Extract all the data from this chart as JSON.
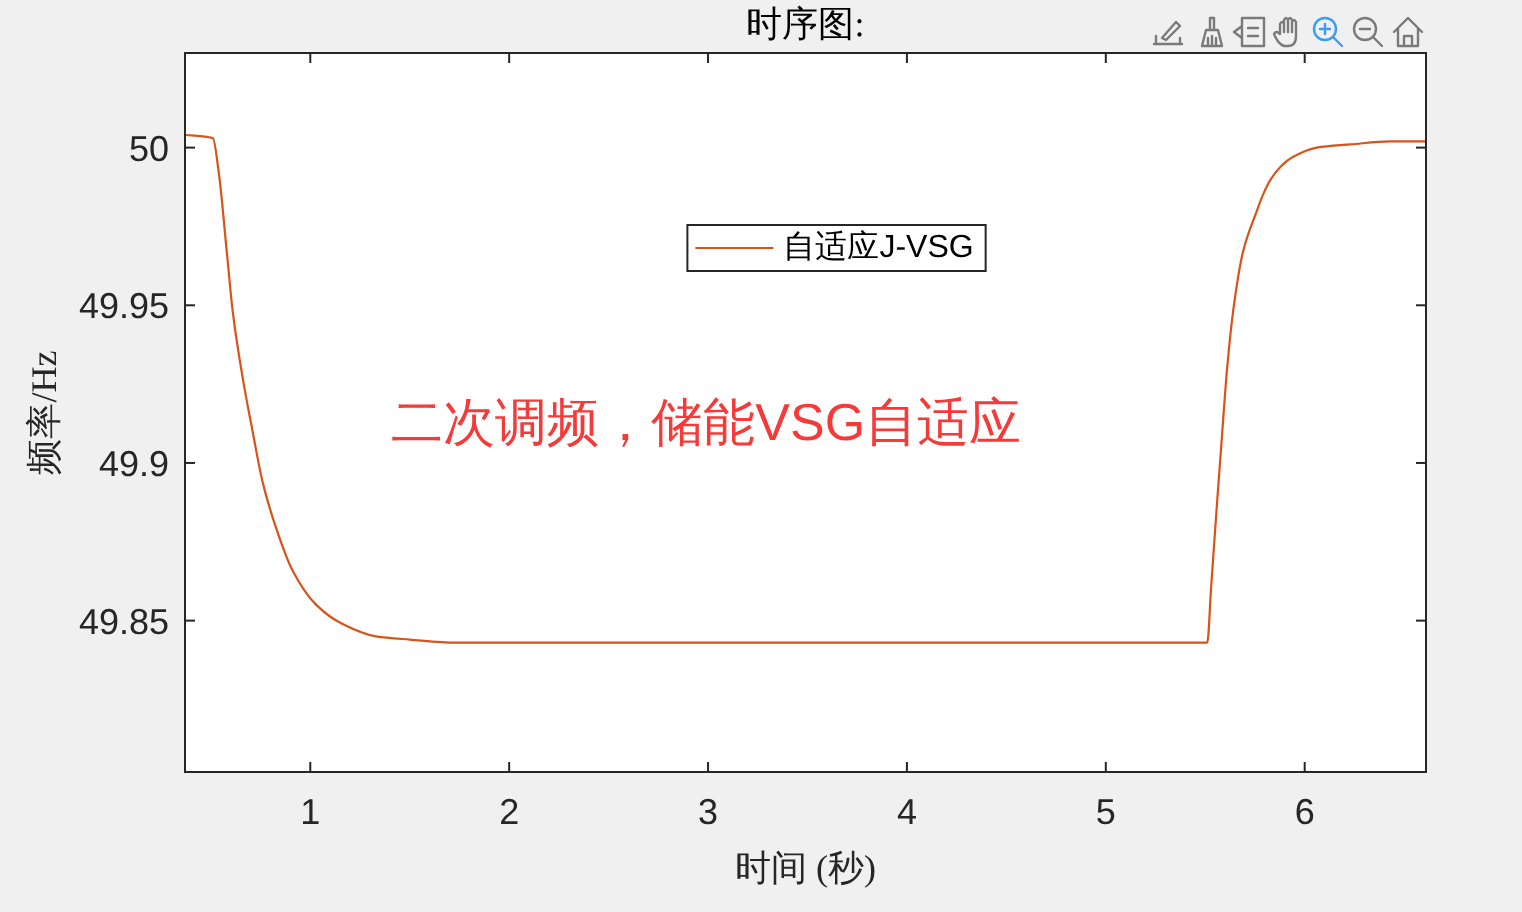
{
  "chart_data": {
    "type": "line",
    "title": "时序图:",
    "xlabel": "时间 (秒)",
    "ylabel": "频率/Hz",
    "xlim": [
      0.37,
      6.61
    ],
    "xticks": [
      1,
      2,
      3,
      4,
      5,
      6
    ],
    "ylim": [
      49.802,
      50.03
    ],
    "yticks": [
      49.85,
      49.9,
      49.95,
      50
    ],
    "series": [
      {
        "name": "自适应J-VSG",
        "color": "#d95319",
        "x": [
          0.37,
          0.51,
          0.54,
          0.58,
          0.61,
          0.66,
          0.71,
          0.76,
          0.83,
          0.91,
          1.03,
          1.16,
          1.33,
          1.5,
          1.73,
          2.0,
          3.0,
          4.0,
          5.0,
          5.51,
          5.53,
          5.56,
          5.58,
          5.61,
          5.64,
          5.69,
          5.76,
          5.79,
          5.83,
          5.88,
          5.94,
          6.06,
          6.23,
          6.43,
          6.61
        ],
        "values": [
          50.004,
          50.003,
          49.992,
          49.967,
          49.948,
          49.927,
          49.91,
          49.894,
          49.879,
          49.866,
          49.855,
          49.849,
          49.845,
          49.844,
          49.843,
          49.843,
          49.843,
          49.843,
          49.843,
          49.843,
          49.861,
          49.888,
          49.905,
          49.93,
          49.948,
          49.967,
          49.98,
          49.985,
          49.99,
          49.994,
          49.997,
          50.0,
          50.001,
          50.002,
          50.002
        ]
      }
    ],
    "legend": "top",
    "annotations": [
      "二次调频，储能VSG自适应"
    ]
  }
}
